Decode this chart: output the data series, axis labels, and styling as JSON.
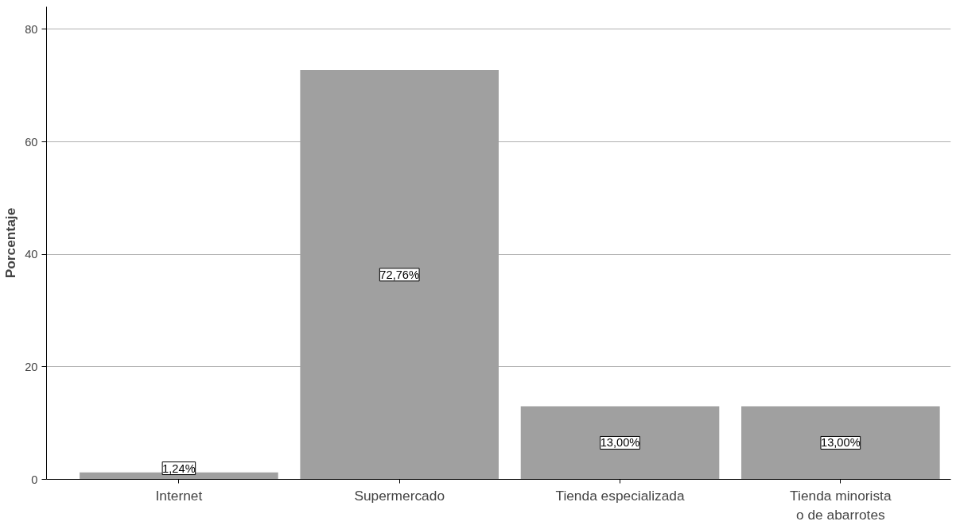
{
  "chart_data": {
    "type": "bar",
    "ylabel": "Porcentaje",
    "categories": [
      "Internet",
      "Supermercado",
      "Tienda especializada",
      "Tienda minorista o de abarrotes"
    ],
    "values": [
      1.24,
      72.76,
      13.0,
      13.0
    ],
    "value_labels": [
      "1,24%",
      "72,76%",
      "13,00%",
      "13,00%"
    ],
    "color": "#a0a0a0",
    "ylim": [
      0,
      84
    ],
    "yticks": [
      0,
      20,
      40,
      60,
      80
    ],
    "grid": "y"
  }
}
